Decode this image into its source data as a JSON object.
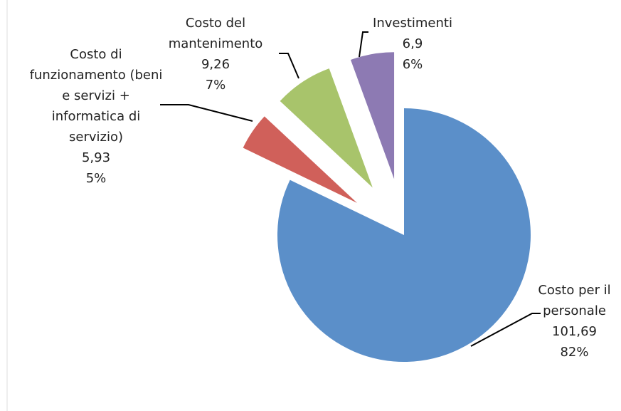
{
  "chart_data": {
    "type": "pie",
    "categories": [
      "Costo per il personale",
      "Costo di funzionamento (beni e servizi + informatica di servizio)",
      "Costo del mantenimento",
      "Investimenti"
    ],
    "values": [
      101.69,
      5.93,
      9.26,
      6.9
    ],
    "value_labels": [
      "101,69",
      "5,93",
      "9,26",
      "6,9"
    ],
    "percent_labels": [
      "82%",
      "5%",
      "7%",
      "6%"
    ],
    "colors": [
      "#5b8fc9",
      "#d0605a",
      "#a8c46b",
      "#8d7ab3"
    ],
    "exploded": [
      false,
      true,
      true,
      true
    ]
  }
}
